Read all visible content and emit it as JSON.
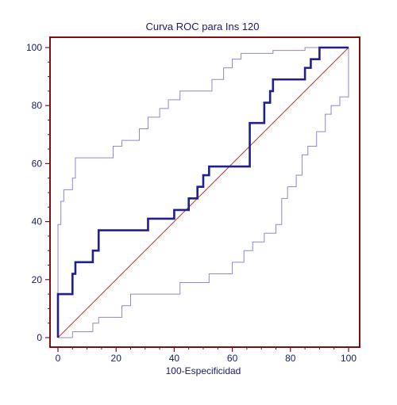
{
  "chart_data": {
    "type": "line",
    "title": "Curva ROC para Ins 120",
    "xlabel": "100-Especificidad",
    "ylabel": "",
    "xlim": [
      0,
      100
    ],
    "ylim": [
      0,
      100
    ],
    "x_ticks": [
      0,
      20,
      40,
      60,
      80,
      100
    ],
    "y_ticks": [
      0,
      20,
      40,
      60,
      80,
      100
    ],
    "grid": false,
    "colors": {
      "frame": "#7a1010",
      "roc": "#1f1f8f",
      "ci": "#8a8ad0",
      "diagonal": "#c0392b",
      "text": "#1a1a6e"
    },
    "series": [
      {
        "style": "roc-curve",
        "points": [
          [
            0,
            0
          ],
          [
            0,
            15
          ],
          [
            5,
            15
          ],
          [
            5,
            22
          ],
          [
            6,
            22
          ],
          [
            6,
            26
          ],
          [
            12,
            26
          ],
          [
            12,
            30
          ],
          [
            14,
            30
          ],
          [
            14,
            37
          ],
          [
            31,
            37
          ],
          [
            31,
            41
          ],
          [
            40,
            41
          ],
          [
            40,
            44
          ],
          [
            45,
            44
          ],
          [
            45,
            48
          ],
          [
            48,
            48
          ],
          [
            48,
            52
          ],
          [
            50,
            52
          ],
          [
            50,
            56
          ],
          [
            52,
            56
          ],
          [
            52,
            59
          ],
          [
            66,
            59
          ],
          [
            66,
            74
          ],
          [
            71,
            74
          ],
          [
            71,
            81
          ],
          [
            73,
            81
          ],
          [
            73,
            85
          ],
          [
            74,
            85
          ],
          [
            74,
            89
          ],
          [
            85,
            89
          ],
          [
            85,
            93
          ],
          [
            87,
            93
          ],
          [
            87,
            96
          ],
          [
            90,
            96
          ],
          [
            90,
            100
          ],
          [
            100,
            100
          ]
        ]
      },
      {
        "style": "upper-confidence-bound",
        "points": [
          [
            0,
            0
          ],
          [
            0,
            39
          ],
          [
            1,
            39
          ],
          [
            1,
            47
          ],
          [
            2,
            47
          ],
          [
            2,
            51
          ],
          [
            5,
            51
          ],
          [
            5,
            55
          ],
          [
            6,
            55
          ],
          [
            6,
            62
          ],
          [
            19,
            62
          ],
          [
            19,
            66
          ],
          [
            22,
            66
          ],
          [
            22,
            68
          ],
          [
            28,
            68
          ],
          [
            28,
            72
          ],
          [
            31,
            72
          ],
          [
            31,
            76
          ],
          [
            35,
            76
          ],
          [
            35,
            79
          ],
          [
            38,
            79
          ],
          [
            38,
            82
          ],
          [
            42,
            82
          ],
          [
            42,
            85
          ],
          [
            53,
            85
          ],
          [
            53,
            89
          ],
          [
            57,
            89
          ],
          [
            57,
            93
          ],
          [
            60,
            93
          ],
          [
            60,
            96
          ],
          [
            63,
            96
          ],
          [
            63,
            98
          ],
          [
            74,
            98
          ],
          [
            74,
            99
          ],
          [
            85,
            99
          ],
          [
            85,
            100
          ],
          [
            100,
            100
          ]
        ]
      },
      {
        "style": "lower-confidence-bound",
        "points": [
          [
            0,
            0
          ],
          [
            5,
            0
          ],
          [
            5,
            2
          ],
          [
            12,
            2
          ],
          [
            12,
            5
          ],
          [
            14,
            5
          ],
          [
            14,
            7
          ],
          [
            22,
            7
          ],
          [
            22,
            11
          ],
          [
            25,
            11
          ],
          [
            25,
            15
          ],
          [
            42,
            15
          ],
          [
            42,
            19
          ],
          [
            52,
            19
          ],
          [
            52,
            22
          ],
          [
            60,
            22
          ],
          [
            60,
            26
          ],
          [
            64,
            26
          ],
          [
            64,
            30
          ],
          [
            67,
            30
          ],
          [
            67,
            33
          ],
          [
            71,
            33
          ],
          [
            71,
            36
          ],
          [
            75,
            36
          ],
          [
            75,
            39
          ],
          [
            77,
            39
          ],
          [
            77,
            48
          ],
          [
            79,
            48
          ],
          [
            79,
            52
          ],
          [
            82,
            52
          ],
          [
            82,
            56
          ],
          [
            84,
            56
          ],
          [
            84,
            63
          ],
          [
            86,
            63
          ],
          [
            86,
            66
          ],
          [
            89,
            66
          ],
          [
            89,
            71
          ],
          [
            92,
            71
          ],
          [
            92,
            77
          ],
          [
            94,
            77
          ],
          [
            94,
            80
          ],
          [
            97,
            80
          ],
          [
            97,
            83
          ],
          [
            100,
            83
          ],
          [
            100,
            100
          ]
        ]
      },
      {
        "style": "reference-diagonal",
        "points": [
          [
            0,
            0
          ],
          [
            100,
            100
          ]
        ]
      }
    ]
  }
}
